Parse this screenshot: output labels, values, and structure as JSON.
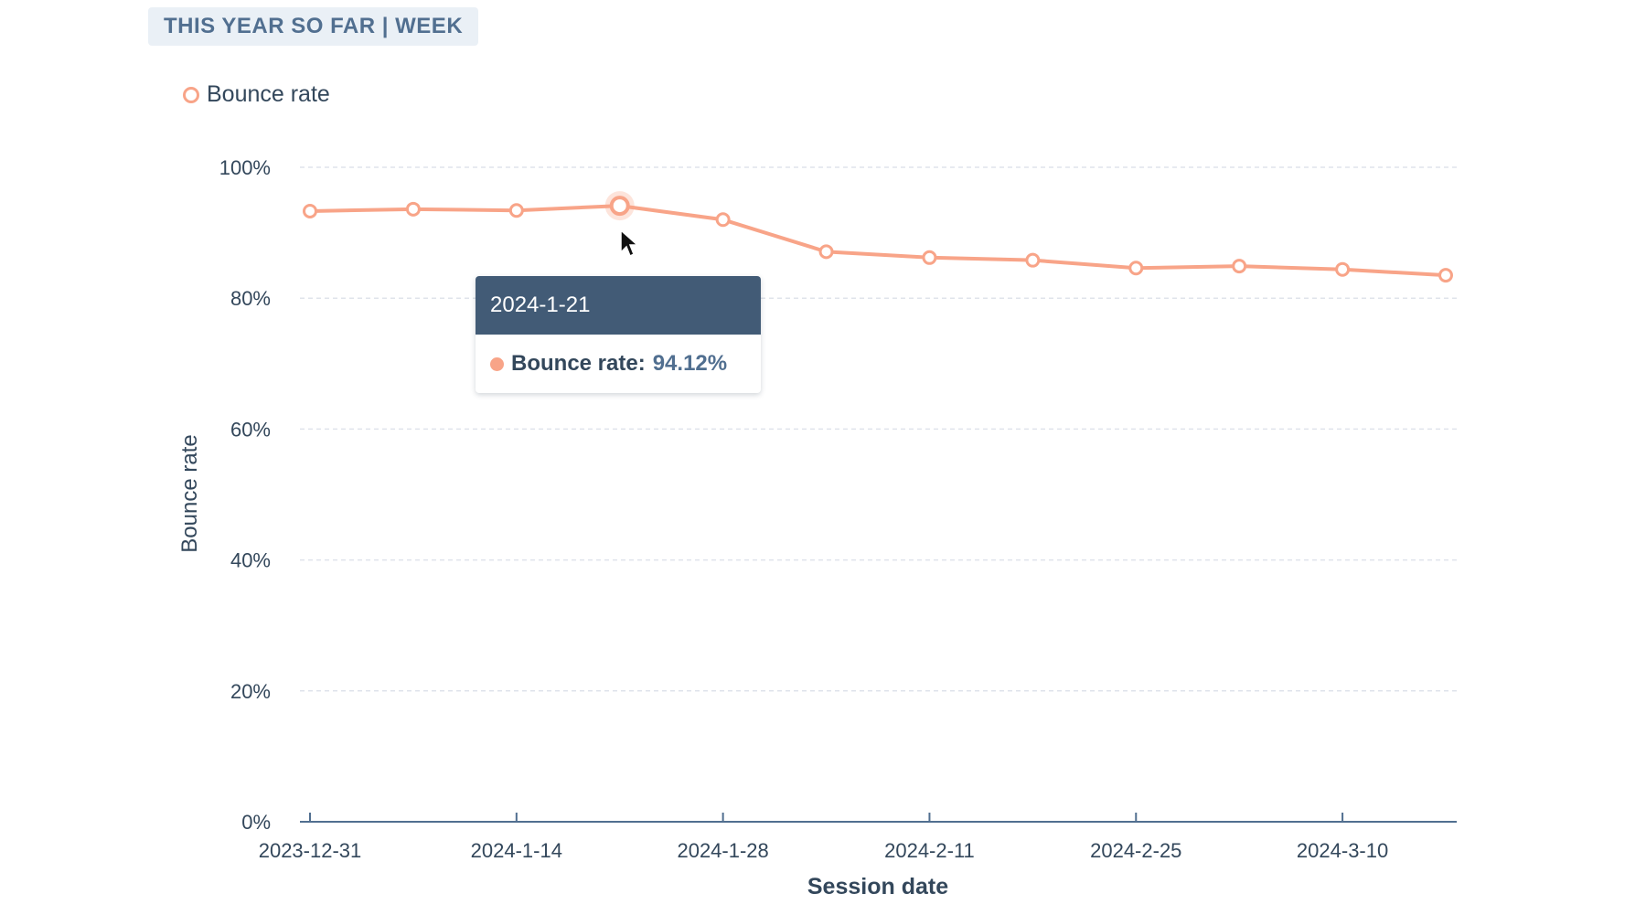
{
  "header": {
    "range_label": "THIS YEAR SO FAR | WEEK"
  },
  "legend": {
    "label": "Bounce rate"
  },
  "tooltip": {
    "date": "2024-1-21",
    "series": "Bounce rate:",
    "value": "94.12%"
  },
  "colors": {
    "series": "#f8a488",
    "axis": "#516f90",
    "grid": "#dfe3eb",
    "tooltip_header": "#425b76"
  },
  "chart_data": {
    "type": "line",
    "title": "",
    "xlabel": "Session date",
    "ylabel": "Bounce rate",
    "ylim": [
      0,
      100
    ],
    "y_ticks": [
      "0%",
      "20%",
      "40%",
      "60%",
      "80%",
      "100%"
    ],
    "x_ticks": [
      "2023-12-31",
      "2024-1-14",
      "2024-1-28",
      "2024-2-11",
      "2024-2-25",
      "2024-3-10"
    ],
    "x": [
      "2023-12-31",
      "2024-1-7",
      "2024-1-14",
      "2024-1-21",
      "2024-1-28",
      "2024-2-4",
      "2024-2-11",
      "2024-2-18",
      "2024-2-25",
      "2024-3-3",
      "2024-3-10",
      "2024-3-17"
    ],
    "series": [
      {
        "name": "Bounce rate",
        "values": [
          93.3,
          93.6,
          93.4,
          94.12,
          92.0,
          87.1,
          86.2,
          85.8,
          84.6,
          84.9,
          84.4,
          83.5
        ]
      }
    ],
    "highlighted_index": 3,
    "grid": true,
    "legend_position": "top-left"
  }
}
